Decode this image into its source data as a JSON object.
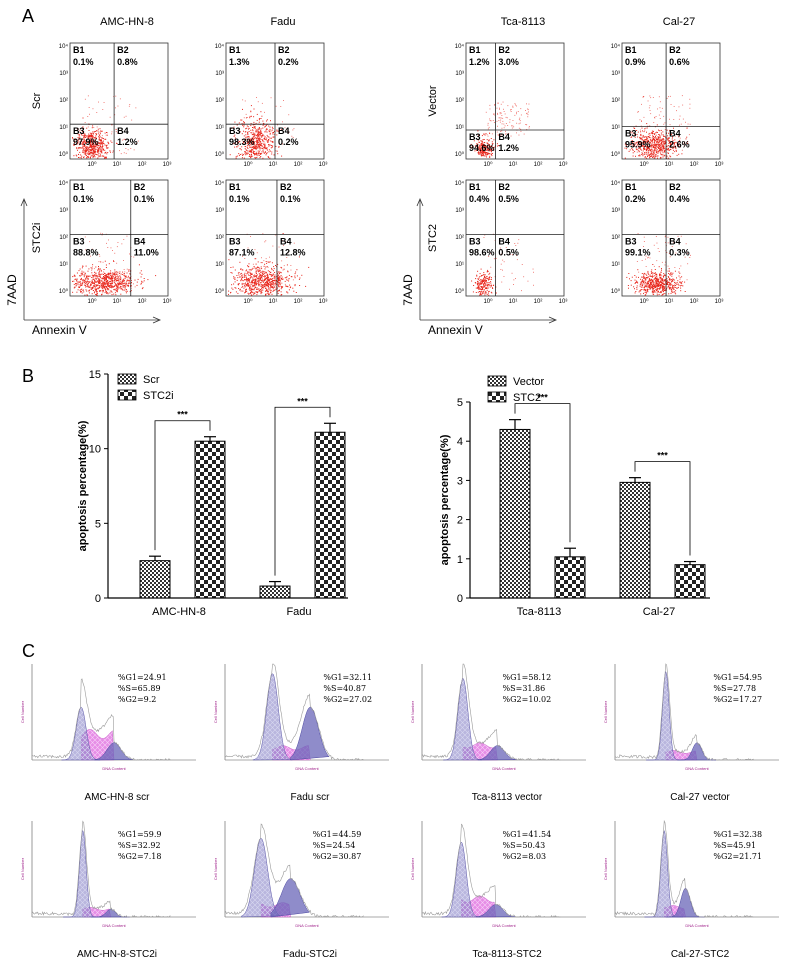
{
  "panel_labels": {
    "a": "A",
    "b": "B",
    "c": "C"
  },
  "panel_a": {
    "x_axis_label": "Annexin V",
    "y_axis_label": "7AAD",
    "tick_labels": {
      "x": [
        "10⁰",
        "10¹",
        "10²",
        "10³"
      ],
      "y": [
        "10⁰",
        "10¹",
        "10²",
        "10³",
        "10⁴"
      ]
    },
    "quadrant_names": [
      "B1",
      "B2",
      "B3",
      "B4"
    ],
    "groups": [
      {
        "row_labels": [
          "Scr",
          "STC2i"
        ],
        "col_labels": [
          "AMC-HN-8",
          "Fadu"
        ]
      },
      {
        "row_labels": [
          "Vector",
          "STC2"
        ],
        "col_labels": [
          "Tca-8113",
          "Cal-27"
        ]
      }
    ],
    "plots": [
      {
        "b1": "0.1%",
        "b2": "0.8%",
        "b3": "97.9%",
        "b4": "1.2%"
      },
      {
        "b1": "1.3%",
        "b2": "0.2%",
        "b3": "98.3%",
        "b4": "0.2%"
      },
      {
        "b1": "1.2%",
        "b2": "3.0%",
        "b3": "94.6%",
        "b4": "1.2%"
      },
      {
        "b1": "0.9%",
        "b2": "0.6%",
        "b3": "95.9%",
        "b4": "2.6%"
      },
      {
        "b1": "0.1%",
        "b2": "0.1%",
        "b3": "88.8%",
        "b4": "11.0%"
      },
      {
        "b1": "0.1%",
        "b2": "0.1%",
        "b3": "87.1%",
        "b4": "12.8%"
      },
      {
        "b1": "0.4%",
        "b2": "0.5%",
        "b3": "98.6%",
        "b4": "0.5%"
      },
      {
        "b1": "0.2%",
        "b2": "0.4%",
        "b3": "99.1%",
        "b4": "0.3%"
      }
    ]
  },
  "chart_data": [
    {
      "type": "bar",
      "categories": [
        "AMC-HN-8",
        "Fadu"
      ],
      "series": [
        {
          "name": "Scr",
          "values": [
            2.5,
            0.8
          ],
          "errors": [
            0.3,
            0.3
          ]
        },
        {
          "name": "STC2i",
          "values": [
            10.5,
            11.1
          ],
          "errors": [
            0.3,
            0.6
          ]
        }
      ],
      "ylabel": "apoptosis percentage(%)",
      "ylim": [
        0,
        15
      ],
      "yticks": [
        "0",
        "5",
        "10",
        "15"
      ],
      "significance": [
        "***",
        "***"
      ],
      "legend_position": "top-left"
    },
    {
      "type": "bar",
      "categories": [
        "Tca-8113",
        "Cal-27"
      ],
      "series": [
        {
          "name": "Vector",
          "values": [
            4.3,
            2.95
          ],
          "errors": [
            0.25,
            0.12
          ]
        },
        {
          "name": "STC2",
          "values": [
            1.05,
            0.85
          ],
          "errors": [
            0.22,
            0.08
          ]
        }
      ],
      "ylabel": "apoptosis percentage(%)",
      "ylim": [
        0,
        5
      ],
      "yticks": [
        "0",
        "1",
        "2",
        "3",
        "4",
        "5"
      ],
      "significance": [
        "***",
        "***"
      ],
      "legend_position": "top-left"
    }
  ],
  "panel_c": {
    "y_axis_label": "Cell Number",
    "x_axis_label": "DNA Content",
    "histograms": [
      {
        "caption": "AMC-HN-8 scr",
        "g1": "%G1=24.91",
        "s": "%S=65.89",
        "g2": "%G2=9.2"
      },
      {
        "caption": "Fadu scr",
        "g1": "%G1=32.11",
        "s": "%S=40.87",
        "g2": "%G2=27.02"
      },
      {
        "caption": "Tca-8113 vector",
        "g1": "%G1=58.12",
        "s": "%S=31.86",
        "g2": "%G2=10.02"
      },
      {
        "caption": "Cal-27 vector",
        "g1": "%G1=54.95",
        "s": "%S=27.78",
        "g2": "%G2=17.27"
      },
      {
        "caption": "AMC-HN-8-STC2i",
        "g1": "%G1=59.9",
        "s": "%S=32.92",
        "g2": "%G2=7.18"
      },
      {
        "caption": "Fadu-STC2i",
        "g1": "%G1=44.59",
        "s": "%S=24.54",
        "g2": "%G2=30.87"
      },
      {
        "caption": "Tca-8113-STC2",
        "g1": "%G1=41.54",
        "s": "%S=50.43",
        "g2": "%G2=8.03"
      },
      {
        "caption": "Cal-27-STC2",
        "g1": "%G1=32.38",
        "s": "%S=45.91",
        "g2": "%G2=21.71"
      }
    ]
  },
  "colors": {
    "dots": "#e8261c",
    "g1_fill": "#8a86c8",
    "s_fill": "#e070e0",
    "g2_fill": "#6a66b8",
    "trace": "#9a9a9a"
  }
}
